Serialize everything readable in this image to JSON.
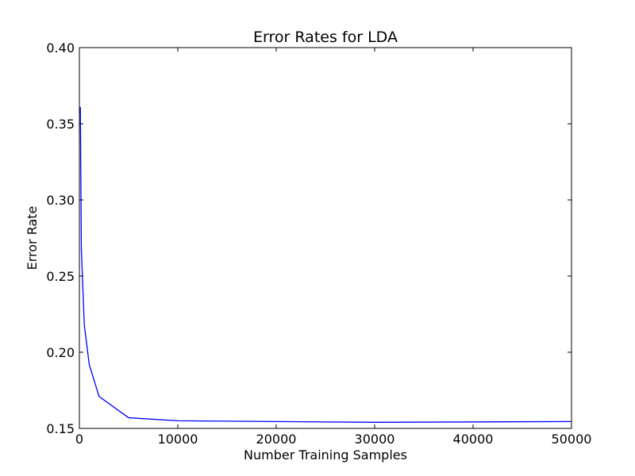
{
  "chart_data": {
    "type": "line",
    "title": "Error Rates for LDA",
    "xlabel": "Number Training Samples",
    "ylabel": "Error Rate",
    "xlim": [
      0,
      50000
    ],
    "ylim": [
      0.15,
      0.4
    ],
    "xticks": [
      0,
      10000,
      20000,
      30000,
      40000,
      50000
    ],
    "xtick_labels": [
      "0",
      "10000",
      "20000",
      "30000",
      "40000",
      "50000"
    ],
    "yticks": [
      0.15,
      0.2,
      0.25,
      0.3,
      0.35,
      0.4
    ],
    "ytick_labels": [
      "0.15",
      "0.20",
      "0.25",
      "0.30",
      "0.35",
      "0.40"
    ],
    "grid": false,
    "legend": "none",
    "series": [
      {
        "color": "#0000ff",
        "x": [
          100,
          200,
          500,
          1000,
          2000,
          5000,
          10000,
          30000,
          50000
        ],
        "y": [
          0.361,
          0.268,
          0.218,
          0.192,
          0.171,
          0.157,
          0.155,
          0.154,
          0.1545
        ]
      }
    ]
  }
}
